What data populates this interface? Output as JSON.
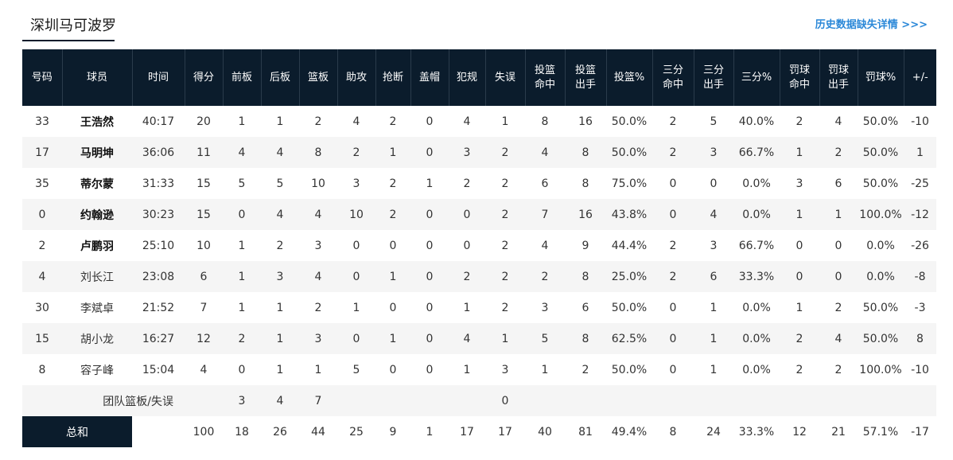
{
  "team_tab": "深圳马可波罗",
  "history_link": "历史数据缺失详情 >>>",
  "headers": [
    "号码",
    "球员",
    "时间",
    "得分",
    "前板",
    "后板",
    "篮板",
    "助攻",
    "抢断",
    "盖帽",
    "犯规",
    "失误",
    "投篮\n命中",
    "投篮\n出手",
    "投篮%",
    "三分\n命中",
    "三分\n出手",
    "三分%",
    "罚球\n命中",
    "罚球\n出手",
    "罚球%",
    "+/-"
  ],
  "players": [
    {
      "starter": true,
      "cells": [
        "33",
        "王浩然",
        "40:17",
        "20",
        "1",
        "1",
        "2",
        "4",
        "2",
        "0",
        "4",
        "1",
        "8",
        "16",
        "50.0%",
        "2",
        "5",
        "40.0%",
        "2",
        "4",
        "50.0%",
        "-10"
      ]
    },
    {
      "starter": true,
      "cells": [
        "17",
        "马明坤",
        "36:06",
        "11",
        "4",
        "4",
        "8",
        "2",
        "1",
        "0",
        "3",
        "2",
        "4",
        "8",
        "50.0%",
        "2",
        "3",
        "66.7%",
        "1",
        "2",
        "50.0%",
        "1"
      ]
    },
    {
      "starter": true,
      "cells": [
        "35",
        "蒂尔蒙",
        "31:33",
        "15",
        "5",
        "5",
        "10",
        "3",
        "2",
        "1",
        "2",
        "2",
        "6",
        "8",
        "75.0%",
        "0",
        "0",
        "0.0%",
        "3",
        "6",
        "50.0%",
        "-25"
      ]
    },
    {
      "starter": true,
      "cells": [
        "0",
        "约翰逊",
        "30:23",
        "15",
        "0",
        "4",
        "4",
        "10",
        "2",
        "0",
        "0",
        "2",
        "7",
        "16",
        "43.8%",
        "0",
        "4",
        "0.0%",
        "1",
        "1",
        "100.0%",
        "-12"
      ]
    },
    {
      "starter": true,
      "cells": [
        "2",
        "卢鹏羽",
        "25:10",
        "10",
        "1",
        "2",
        "3",
        "0",
        "0",
        "0",
        "0",
        "2",
        "4",
        "9",
        "44.4%",
        "2",
        "3",
        "66.7%",
        "0",
        "0",
        "0.0%",
        "-26"
      ]
    },
    {
      "starter": false,
      "cells": [
        "4",
        "刘长江",
        "23:08",
        "6",
        "1",
        "3",
        "4",
        "0",
        "1",
        "0",
        "2",
        "2",
        "2",
        "8",
        "25.0%",
        "2",
        "6",
        "33.3%",
        "0",
        "0",
        "0.0%",
        "-8"
      ]
    },
    {
      "starter": false,
      "cells": [
        "30",
        "李斌卓",
        "21:52",
        "7",
        "1",
        "1",
        "2",
        "1",
        "0",
        "0",
        "1",
        "2",
        "3",
        "6",
        "50.0%",
        "0",
        "1",
        "0.0%",
        "1",
        "2",
        "50.0%",
        "-3"
      ]
    },
    {
      "starter": false,
      "cells": [
        "15",
        "胡小龙",
        "16:27",
        "12",
        "2",
        "1",
        "3",
        "0",
        "1",
        "0",
        "4",
        "1",
        "5",
        "8",
        "62.5%",
        "0",
        "1",
        "0.0%",
        "2",
        "4",
        "50.0%",
        "8"
      ]
    },
    {
      "starter": false,
      "cells": [
        "8",
        "容子峰",
        "15:04",
        "4",
        "0",
        "1",
        "1",
        "5",
        "0",
        "0",
        "1",
        "3",
        "1",
        "2",
        "50.0%",
        "0",
        "1",
        "0.0%",
        "2",
        "2",
        "100.0%",
        "-10"
      ]
    }
  ],
  "team_row": {
    "label": "团队篮板/失误",
    "oreb": "3",
    "dreb": "4",
    "reb": "7",
    "tov": "0"
  },
  "total_row": {
    "label": "总和",
    "cells": [
      "100",
      "18",
      "26",
      "44",
      "25",
      "9",
      "1",
      "17",
      "17",
      "40",
      "81",
      "49.4%",
      "8",
      "24",
      "33.3%",
      "12",
      "21",
      "57.1%",
      "-17"
    ]
  }
}
